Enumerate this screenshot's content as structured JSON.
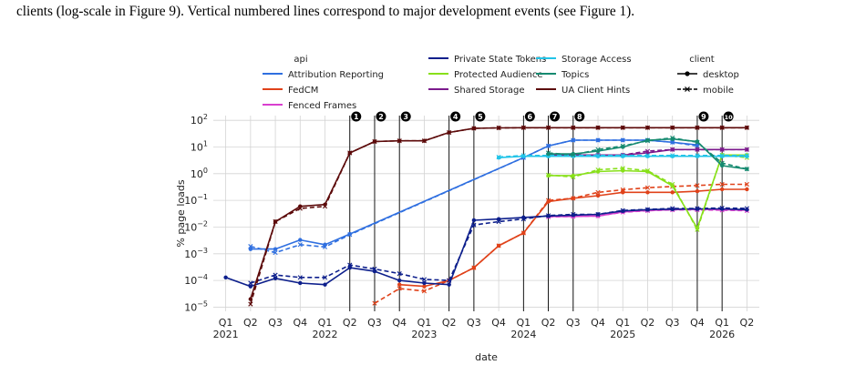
{
  "caption": "clients (log-scale in Figure 9). Vertical numbered lines correspond to major development events (see Figure 1).",
  "chart_data": {
    "type": "line",
    "xlabel": "date",
    "ylabel": "% page loads",
    "yscale": "log",
    "ylim": [
      7e-06,
      150
    ],
    "x_categories": [
      "Q1\n2021",
      "Q2",
      "Q3",
      "Q4",
      "Q1\n2022",
      "Q2",
      "Q3",
      "Q4",
      "Q1\n2023",
      "Q2",
      "Q3",
      "Q4",
      "Q1\n2024",
      "Q2",
      "Q3",
      "Q4",
      "Q1\n2025",
      "Q2",
      "Q3",
      "Q4",
      "Q1\n2026",
      "Q2"
    ],
    "y_ticks": [
      {
        "value": 1e-05,
        "base": "10",
        "exp": "−5"
      },
      {
        "value": 0.0001,
        "base": "10",
        "exp": "−4"
      },
      {
        "value": 0.001,
        "base": "10",
        "exp": "−3"
      },
      {
        "value": 0.01,
        "base": "10",
        "exp": "−2"
      },
      {
        "value": 0.1,
        "base": "10",
        "exp": "−1"
      },
      {
        "value": 1,
        "base": "10",
        "exp": "0"
      },
      {
        "value": 10,
        "base": "10",
        "exp": "1"
      },
      {
        "value": 100,
        "base": "10",
        "exp": "2"
      }
    ],
    "events": [
      {
        "label": "1",
        "x": 5
      },
      {
        "label": "2",
        "x": 6
      },
      {
        "label": "3",
        "x": 7
      },
      {
        "label": "4",
        "x": 9
      },
      {
        "label": "5",
        "x": 10
      },
      {
        "label": "6",
        "x": 12
      },
      {
        "label": "7",
        "x": 13
      },
      {
        "label": "8",
        "x": 14
      },
      {
        "label": "9",
        "x": 19
      },
      {
        "label": "10",
        "x": 20
      }
    ],
    "legend": {
      "api_title": "api",
      "client_title": "client",
      "api_entries": [
        "Attribution Reporting",
        "FedCM",
        "Fenced Frames",
        "Private State Tokens",
        "Protected Audience",
        "Shared Storage",
        "Storage Access",
        "Topics",
        "UA Client Hints"
      ],
      "client_entries": [
        {
          "label": "desktop",
          "style": "solid",
          "marker": "circle"
        },
        {
          "label": "mobile",
          "style": "dashed",
          "marker": "x"
        }
      ]
    },
    "series": [
      {
        "name": "Attribution Reporting",
        "color": "#2f6fe0",
        "desktop": [
          null,
          0.0015,
          0.0015,
          0.0033,
          0.0022,
          0.0055,
          null,
          null,
          null,
          null,
          null,
          null,
          4,
          11,
          18,
          18,
          18,
          18,
          15,
          12,
          null,
          null
        ],
        "mobile": [
          null,
          0.0019,
          0.0011,
          0.0022,
          0.0018,
          0.0052,
          null,
          null,
          null,
          null,
          null,
          null,
          4,
          11,
          18,
          18,
          18,
          18,
          15,
          11,
          null,
          null
        ],
        "connect_gaps": true
      },
      {
        "name": "FedCM",
        "color": "#e0421a",
        "desktop": [
          null,
          null,
          null,
          null,
          null,
          null,
          null,
          7e-05,
          6e-05,
          0.0001,
          0.0003,
          0.002,
          0.006,
          0.09,
          0.12,
          0.15,
          0.2,
          0.2,
          0.2,
          0.22,
          0.26,
          0.26
        ],
        "mobile": [
          null,
          null,
          null,
          null,
          null,
          null,
          1.4e-05,
          5e-05,
          4e-05,
          0.0001,
          0.0003,
          0.002,
          0.006,
          0.1,
          0.12,
          0.2,
          0.25,
          0.3,
          0.33,
          0.36,
          0.4,
          0.4
        ]
      },
      {
        "name": "Fenced Frames",
        "color": "#d93fcf",
        "desktop": [
          null,
          null,
          null,
          null,
          null,
          null,
          null,
          null,
          null,
          null,
          null,
          null,
          null,
          0.025,
          0.025,
          0.026,
          0.037,
          0.042,
          0.045,
          0.046,
          0.045,
          0.043
        ],
        "mobile": [
          null,
          null,
          null,
          null,
          null,
          null,
          null,
          null,
          null,
          null,
          null,
          null,
          null,
          0.024,
          0.025,
          0.026,
          0.036,
          0.041,
          0.044,
          0.044,
          0.043,
          0.041
        ]
      },
      {
        "name": "Private State Tokens",
        "color": "#0d1f8c",
        "desktop": [
          0.00013,
          6e-05,
          0.00012,
          8e-05,
          7e-05,
          0.0003,
          0.00022,
          0.0001,
          8e-05,
          7e-05,
          0.018,
          0.02,
          0.023,
          0.026,
          0.028,
          0.03,
          0.04,
          0.045,
          0.047,
          0.048,
          0.048,
          0.045
        ],
        "mobile": [
          null,
          8e-05,
          0.00016,
          0.00013,
          0.00013,
          0.00038,
          0.00027,
          0.00018,
          0.00011,
          0.0001,
          0.012,
          0.016,
          0.02,
          0.027,
          0.03,
          0.03,
          0.042,
          0.046,
          0.05,
          0.05,
          0.052,
          0.05
        ]
      },
      {
        "name": "Protected Audience",
        "color": "#88e01a",
        "desktop": [
          null,
          null,
          null,
          null,
          null,
          null,
          null,
          null,
          null,
          null,
          null,
          null,
          null,
          0.85,
          0.85,
          1.2,
          1.3,
          1.2,
          0.35,
          0.009,
          5,
          5
        ],
        "mobile": [
          null,
          null,
          null,
          null,
          null,
          null,
          null,
          null,
          null,
          null,
          null,
          null,
          null,
          0.9,
          0.75,
          1.4,
          1.6,
          1.3,
          0.4,
          0.008,
          5,
          4
        ]
      },
      {
        "name": "Shared Storage",
        "color": "#7b1a8c",
        "desktop": [
          null,
          null,
          null,
          null,
          null,
          null,
          null,
          null,
          null,
          null,
          null,
          null,
          null,
          5,
          5,
          5,
          5,
          6,
          8,
          8,
          8,
          8
        ],
        "mobile": [
          null,
          null,
          null,
          null,
          null,
          null,
          null,
          null,
          null,
          null,
          null,
          null,
          null,
          5,
          5,
          5,
          5,
          7,
          8,
          8,
          8,
          8
        ]
      },
      {
        "name": "Storage Access",
        "color": "#22c4e8",
        "desktop": [
          null,
          null,
          null,
          null,
          null,
          null,
          null,
          null,
          null,
          null,
          null,
          4,
          4.5,
          4.5,
          4.5,
          4.5,
          4.5,
          4.5,
          4.5,
          4.5,
          4.5,
          4.5
        ],
        "mobile": [
          null,
          null,
          null,
          null,
          null,
          null,
          null,
          null,
          null,
          null,
          null,
          4.2,
          4.8,
          4.8,
          4.8,
          4.8,
          4.8,
          4.8,
          4.8,
          4.8,
          4.8,
          4.8
        ]
      },
      {
        "name": "Topics",
        "color": "#168a70",
        "desktop": [
          null,
          null,
          null,
          null,
          null,
          null,
          null,
          null,
          null,
          null,
          null,
          null,
          null,
          5.5,
          5.5,
          7,
          10,
          18,
          20,
          16,
          2,
          1.5
        ],
        "mobile": [
          null,
          null,
          null,
          null,
          null,
          null,
          null,
          null,
          null,
          null,
          null,
          null,
          null,
          6,
          5,
          8,
          11,
          17,
          22,
          15,
          2.5,
          1.5
        ]
      },
      {
        "name": "UA Client Hints",
        "color": "#5c0a0a",
        "desktop": [
          null,
          2e-05,
          0.016,
          0.06,
          0.07,
          6,
          16,
          17,
          17,
          35,
          50,
          52,
          53,
          53,
          53,
          53,
          53,
          53,
          53,
          53,
          53,
          53
        ],
        "mobile": [
          null,
          1.3e-05,
          0.016,
          0.05,
          0.06,
          6,
          16,
          17,
          17,
          35,
          50,
          52,
          53,
          53,
          53,
          53,
          53,
          53,
          53,
          53,
          53,
          53
        ]
      }
    ]
  }
}
